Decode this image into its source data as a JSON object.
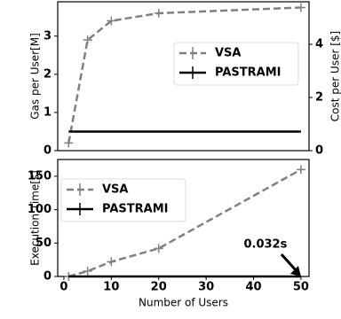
{
  "chart_data": [
    {
      "type": "line",
      "ylabel": "Gas per User[M]",
      "y2label": "Cost per User [$]",
      "x": [
        1,
        5,
        10,
        20,
        50
      ],
      "xlim": [
        -1.3,
        51.7
      ],
      "ylim": [
        0,
        3.9
      ],
      "yticks": [
        0,
        1,
        2,
        3
      ],
      "y2lim": [
        0,
        5.6
      ],
      "y2ticks": [
        0,
        2,
        4
      ],
      "legend": "center right",
      "series": [
        {
          "name": "VSA",
          "color": "#808080",
          "dash": true,
          "values": [
            0.2,
            2.9,
            3.4,
            3.6,
            3.75
          ]
        },
        {
          "name": "PASTRAMI",
          "color": "#000000",
          "dash": false,
          "values": [
            0.5,
            0.5,
            0.5,
            0.5,
            0.5
          ]
        }
      ]
    },
    {
      "type": "line",
      "xlabel": "Number of Users",
      "ylabel": "Execution Time[s]",
      "x": [
        1,
        5,
        10,
        20,
        50
      ],
      "xlim": [
        -1.3,
        51.7
      ],
      "xticks": [
        0,
        10,
        20,
        30,
        40,
        50
      ],
      "ylim": [
        0,
        175
      ],
      "yticks": [
        0,
        50,
        100,
        150
      ],
      "legend": "upper left",
      "annotation": "0.032s",
      "series": [
        {
          "name": "VSA",
          "color": "#808080",
          "dash": true,
          "values": [
            0,
            8,
            22,
            42,
            160
          ]
        },
        {
          "name": "PASTRAMI",
          "color": "#000000",
          "dash": false,
          "values": [
            0.032,
            0.032,
            0.032,
            0.032,
            0.032
          ]
        }
      ]
    }
  ]
}
